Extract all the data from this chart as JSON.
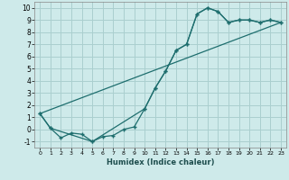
{
  "xlabel": "Humidex (Indice chaleur)",
  "bg_color": "#ceeaea",
  "grid_color": "#aacfcf",
  "line_color": "#1e6e6e",
  "xlim": [
    -0.5,
    23.5
  ],
  "ylim": [
    -1.5,
    10.5
  ],
  "xticks": [
    0,
    1,
    2,
    3,
    4,
    5,
    6,
    7,
    8,
    9,
    10,
    11,
    12,
    13,
    14,
    15,
    16,
    17,
    18,
    19,
    20,
    21,
    22,
    23
  ],
  "yticks": [
    -1,
    0,
    1,
    2,
    3,
    4,
    5,
    6,
    7,
    8,
    9,
    10
  ],
  "line1_x": [
    0,
    1,
    2,
    3,
    4,
    5,
    6,
    7,
    8,
    9,
    10,
    11,
    12,
    13,
    14,
    15,
    16,
    17,
    18,
    19,
    20,
    21,
    22,
    23
  ],
  "line1_y": [
    1.3,
    0.1,
    -0.7,
    -0.3,
    -0.4,
    -1.0,
    -0.6,
    -0.5,
    0.0,
    0.2,
    1.7,
    3.4,
    4.8,
    6.5,
    7.0,
    9.5,
    10.0,
    9.7,
    8.8,
    9.0,
    9.0,
    8.8,
    9.0,
    8.8
  ],
  "line2_x": [
    0,
    1,
    5,
    10,
    11,
    12,
    13,
    14,
    15,
    16,
    17,
    18,
    19,
    20,
    21,
    22,
    23
  ],
  "line2_y": [
    1.3,
    0.1,
    -1.0,
    1.7,
    3.4,
    4.8,
    6.5,
    7.0,
    9.5,
    10.0,
    9.7,
    8.8,
    9.0,
    9.0,
    8.8,
    9.0,
    8.8
  ],
  "line3_x": [
    0,
    23
  ],
  "line3_y": [
    1.3,
    8.8
  ]
}
